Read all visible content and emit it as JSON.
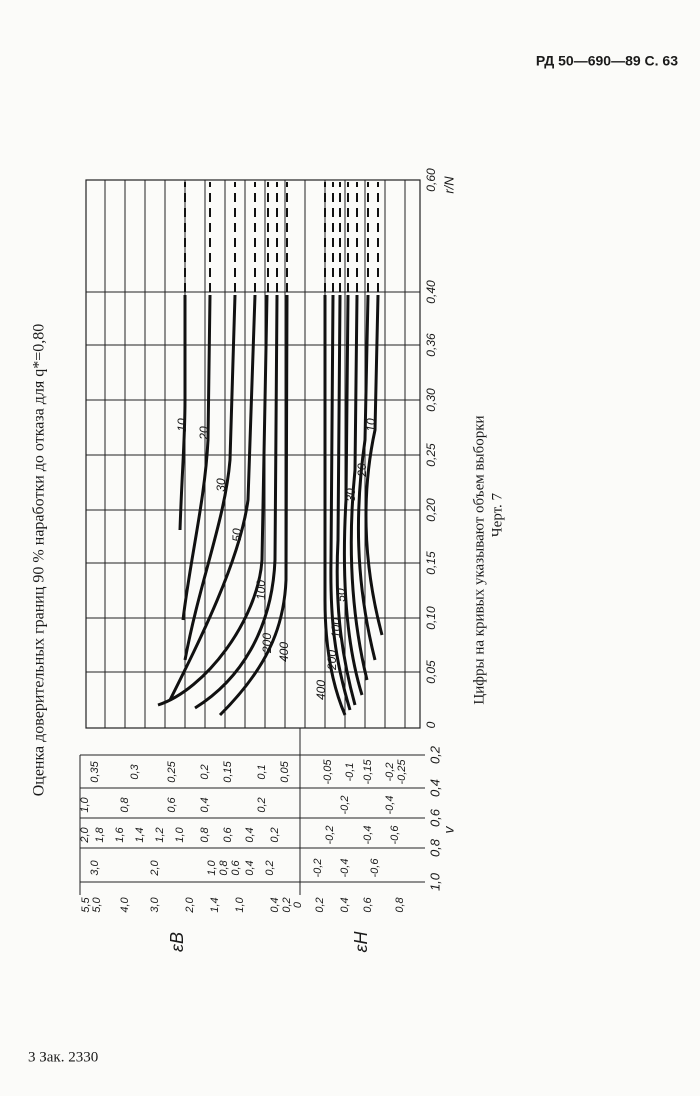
{
  "header": {
    "page_ref": "РД 50—690—89 С. 63"
  },
  "title": "Оценка доверительных границ 90 % наработки до отказа для q*=0,80",
  "figure": {
    "x_label": "r/N",
    "x_ticks": [
      "0",
      "0,05",
      "0,10",
      "0,15",
      "0,20",
      "0,25",
      "0,30",
      "0,36",
      "0,40",
      "0,60"
    ],
    "v_label": "v",
    "v_ticks": [
      "0,2",
      "0,4",
      "0,6",
      "0,8",
      "1,0"
    ],
    "eps_upper_label": "εВ",
    "eps_lower_label": "εН",
    "scale_v02": [
      "0,35",
      "0,3",
      "0,25",
      "0,2",
      "0,15",
      "0,1",
      "0,05",
      "-0,05",
      "-0,1",
      "-0,15",
      "-0,2",
      "-0,25"
    ],
    "scale_v04": [
      "1,0",
      "0,8",
      "0,6",
      "0,4",
      "0,2",
      "-0,2",
      "-0,4"
    ],
    "scale_v06": [
      "2,0",
      "1,8",
      "1,6",
      "1,4",
      "1,2",
      "1,0",
      "0,8",
      "0,6",
      "0,4",
      "0,2",
      "-0,2",
      "-0,4",
      "-0,6"
    ],
    "scale_v10": [
      "3,0",
      "2,0",
      "1,0",
      "0,8",
      "0,6",
      "0,4",
      "0,2",
      "-0,2",
      "-0,4",
      "-0,6"
    ],
    "scale_eps": [
      "5,5",
      "5,0",
      "4,0",
      "3,0",
      "2,0",
      "1,4",
      "1,0",
      "0,4",
      "0,2",
      "0",
      "0,2",
      "0,4",
      "0,6",
      "0,8"
    ],
    "upper_curve_labels": [
      "10",
      "20",
      "30",
      "50",
      "100",
      "200",
      "400"
    ],
    "lower_curve_labels": [
      "10",
      "20",
      "30",
      "50",
      "100",
      "200",
      "400"
    ]
  },
  "note": "Цифры на кривых указывают объем выборки",
  "figure_number": "Черт. 7",
  "footer": "3 Зак. 2330"
}
